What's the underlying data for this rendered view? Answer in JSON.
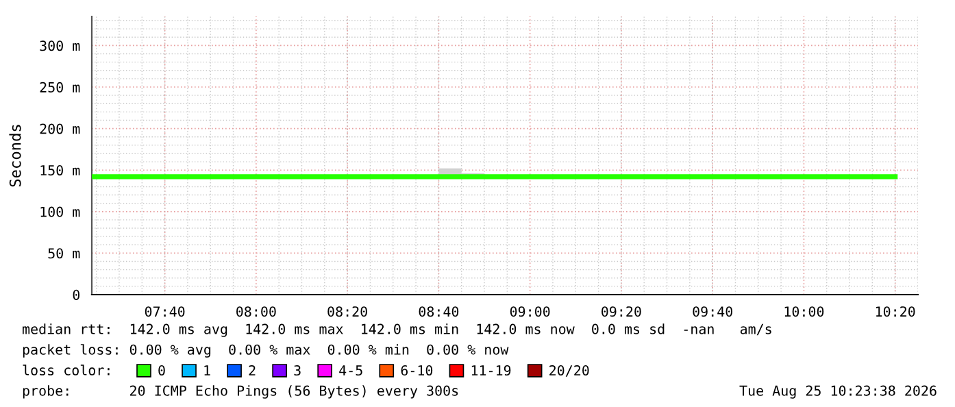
{
  "chart_data": {
    "type": "line",
    "ylabel": "Seconds",
    "x": [
      7.4,
      8.6667,
      8.75,
      8.7501,
      8.8333,
      10.3333
    ],
    "series": [
      {
        "name": "0",
        "color": "#26ff00",
        "values": [
          142,
          142,
          142,
          142,
          142,
          142
        ],
        "lower": [
          null,
          142,
          142,
          142,
          142,
          null
        ],
        "upper": [
          null,
          152,
          152,
          146,
          146,
          null
        ]
      },
      {
        "name": "1",
        "color": "#00b8ff",
        "values": [
          null,
          null,
          null,
          null,
          null,
          null
        ]
      },
      {
        "name": "2",
        "color": "#0059ff",
        "values": [
          null,
          null,
          null,
          null,
          null,
          null
        ]
      },
      {
        "name": "3",
        "color": "#7e00ff",
        "values": [
          null,
          null,
          null,
          null,
          null,
          null
        ]
      },
      {
        "name": "4-5",
        "color": "#ff00ff",
        "values": [
          null,
          null,
          null,
          null,
          null,
          null
        ]
      },
      {
        "name": "6-10",
        "color": "#ff5500",
        "values": [
          null,
          null,
          null,
          null,
          null,
          null
        ]
      },
      {
        "name": "11-19",
        "color": "#ff0000",
        "values": [
          null,
          null,
          null,
          null,
          null,
          null
        ]
      },
      {
        "name": "20/20",
        "color": "#a10000",
        "values": [
          null,
          null,
          null,
          null,
          null,
          null
        ]
      }
    ],
    "legend_title": "loss color:",
    "legend": "bottom",
    "xlim": [
      7.4,
      10.4167
    ],
    "xticks": [
      {
        "value": 7.6667,
        "label": "07:40"
      },
      {
        "value": 8,
        "label": "08:00"
      },
      {
        "value": 8.3333,
        "label": "08:20"
      },
      {
        "value": 8.6667,
        "label": "08:40"
      },
      {
        "value": 9,
        "label": "09:00"
      },
      {
        "value": 9.3333,
        "label": "09:20"
      },
      {
        "value": 9.6667,
        "label": "09:40"
      },
      {
        "value": 10,
        "label": "10:00"
      },
      {
        "value": 10.3333,
        "label": "10:20"
      }
    ],
    "ylim": [
      0,
      335
    ],
    "yticks": [
      0,
      {
        "value": 50,
        "label": "50 m"
      },
      {
        "value": 100,
        "label": "100 m"
      },
      {
        "value": 150,
        "label": "150 m"
      },
      {
        "value": 200,
        "label": "200 m"
      },
      {
        "value": 250,
        "label": "250 m"
      },
      {
        "value": 300,
        "label": "300 m"
      }
    ],
    "grid": true,
    "annotations": [
      "median rtt:  142.0 ms avg  142.0 ms max  142.0 ms min  142.0 ms now  0.0 ms sd  -nan   am/s",
      "packet loss: 0.00 % avg  0.00 % max  0.00 % min  0.00 % now",
      "probe:       20 ICMP Echo Pings (56 Bytes) every 300s",
      "Tue Aug 25 10:23:38 2026"
    ]
  }
}
